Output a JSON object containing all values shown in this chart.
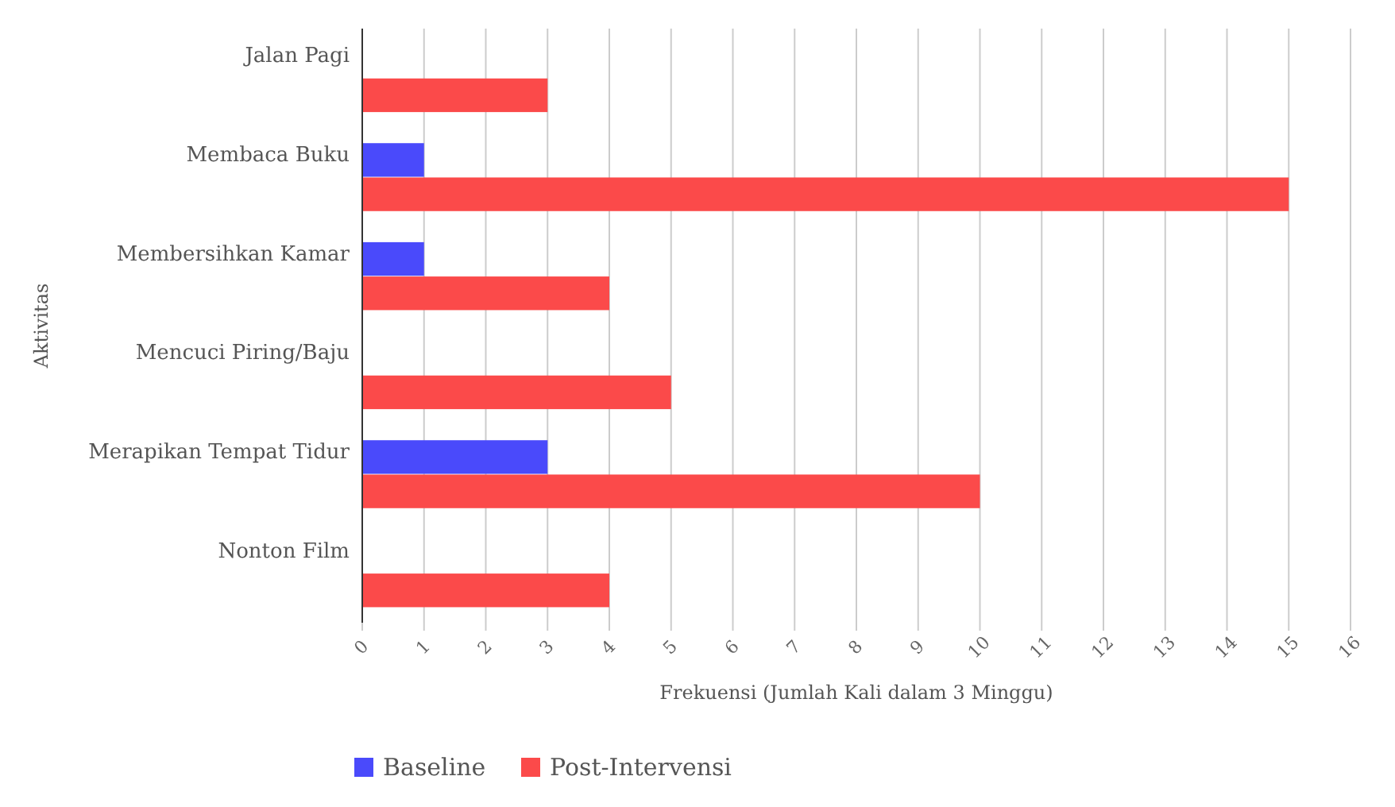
{
  "chart_data": {
    "type": "bar",
    "orientation": "horizontal",
    "xlabel": "Frekuensi (Jumlah Kali dalam 3 Minggu)",
    "ylabel": "Aktivitas",
    "categories": [
      "Jalan Pagi",
      "Membaca Buku",
      "Membersihkan Kamar",
      "Mencuci Piring/Baju",
      "Merapikan Tempat Tidur",
      "Nonton Film"
    ],
    "series": [
      {
        "name": "Baseline",
        "color": "#4a4afb",
        "values": [
          0,
          1,
          1,
          0,
          3,
          0
        ]
      },
      {
        "name": "Post-Intervensi",
        "color": "#fb4a4a",
        "values": [
          3,
          15,
          4,
          5,
          10,
          4
        ]
      }
    ],
    "xlim": [
      0,
      16
    ],
    "xticks": [
      0,
      1,
      2,
      3,
      4,
      5,
      6,
      7,
      8,
      9,
      10,
      11,
      12,
      13,
      14,
      15,
      16
    ],
    "grid": "x",
    "legend": "bottom"
  }
}
